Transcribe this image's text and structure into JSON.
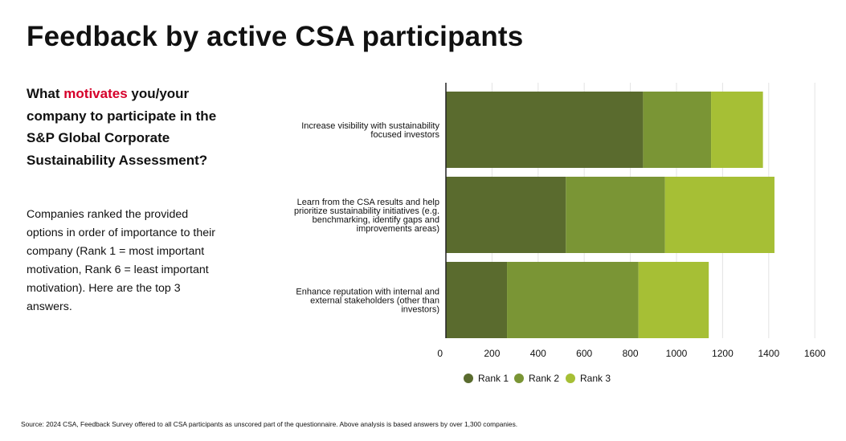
{
  "title": "Feedback by active CSA participants",
  "question": {
    "before": "What ",
    "highlight": "motivates",
    "after": " you/your company to participate in the S&P Global Corporate Sustainability Assessment?"
  },
  "description": "Companies ranked the provided options in order of importance to their company (Rank 1 = most important motivation, Rank 6 = least important motivation). Here are the top 3 answers.",
  "source": "Source: 2024 CSA, Feedback Survey offered to all CSA participants as unscored part of the questionnaire. Above analysis is based answers by over 1,300 companies.",
  "colors": {
    "highlight": "#d6002a",
    "rank1": "#5a6b2e",
    "rank2": "#7a9535",
    "rank3": "#a6bf35"
  },
  "chart_data": {
    "type": "bar",
    "orientation": "horizontal",
    "stacked": true,
    "categories": [
      [
        "Increase visibility with sustainability",
        "focused investors"
      ],
      [
        "Learn from the CSA results and help",
        "prioritize sustainability initiatives (e.g.",
        "benchmarking, identify gaps and",
        "improvements areas)"
      ],
      [
        "Enhance reputation with internal and",
        "external stakeholders (other than",
        "investors)"
      ]
    ],
    "series": [
      {
        "name": "Rank 1",
        "values": [
          855,
          520,
          265
        ]
      },
      {
        "name": "Rank 2",
        "values": [
          295,
          430,
          570
        ]
      },
      {
        "name": "Rank 3",
        "values": [
          225,
          475,
          305
        ]
      }
    ],
    "xlim": [
      0,
      1600
    ],
    "xticks": [
      0,
      200,
      400,
      600,
      800,
      1000,
      1200,
      1400,
      1600
    ],
    "grid": true,
    "legend": "bottom"
  }
}
